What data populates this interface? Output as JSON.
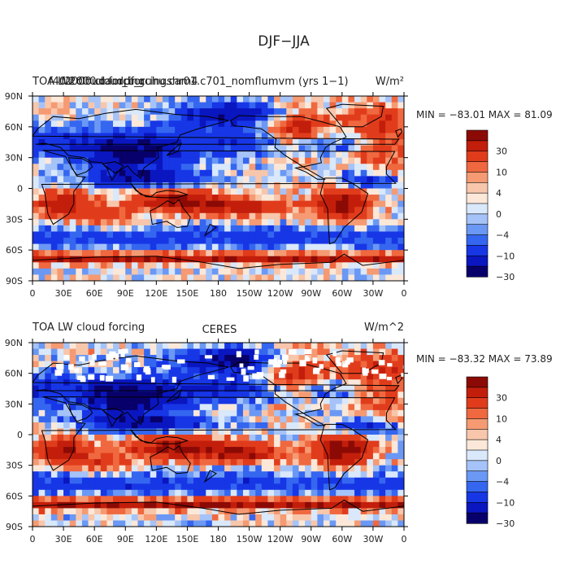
{
  "page_title": "DJF−JJA",
  "colorbar": {
    "colors": [
      "#08006a",
      "#0a16bf",
      "#1736e6",
      "#3566f0",
      "#6a98f4",
      "#a5c3f8",
      "#d9e8fb",
      "#fbe8d9",
      "#f8c6ab",
      "#f59a72",
      "#f0683f",
      "#e03c1c",
      "#c21e0b",
      "#8c0a05"
    ],
    "tick_labels": [
      "30",
      "10",
      "4",
      "0",
      "−4",
      "−10",
      "−30"
    ]
  },
  "chart_data": [
    {
      "type": "heatmap",
      "title_left": "TOA LW cloud forcing",
      "title_center": "f40.2000.cam_b_cuhu.cam4",
      "title_overlap": "f2000.cloudpforcingshr01.c701_nomflumvm (yrs 1−1)",
      "units": "W/m²",
      "min_max_text": "MIN = −83.01  MAX =  81.09",
      "min": -83.01,
      "max": 81.09,
      "x_tick_labels": [
        "0",
        "30E",
        "60E",
        "90E",
        "120E",
        "150E",
        "180",
        "150W",
        "120W",
        "90W",
        "60W",
        "30W",
        "0"
      ],
      "y_tick_labels": [
        "90N",
        "60N",
        "30N",
        "0",
        "30S",
        "60S",
        "90S"
      ],
      "xlim": [
        0,
        360
      ],
      "ylim": [
        -90,
        90
      ]
    },
    {
      "type": "heatmap",
      "title_left": "TOA LW cloud forcing",
      "title_center": "CERES",
      "title_overlap": "",
      "units": "W/m^2",
      "min_max_text": "MIN = −83.32  MAX =  73.89",
      "min": -83.32,
      "max": 73.89,
      "x_tick_labels": [
        "0",
        "30E",
        "60E",
        "90E",
        "120E",
        "150E",
        "180",
        "150W",
        "120W",
        "90W",
        "60W",
        "30W",
        "0"
      ],
      "y_tick_labels": [
        "90N",
        "60N",
        "30N",
        "0",
        "30S",
        "60S",
        "90S"
      ],
      "xlim": [
        0,
        360
      ],
      "ylim": [
        -90,
        90
      ]
    }
  ]
}
